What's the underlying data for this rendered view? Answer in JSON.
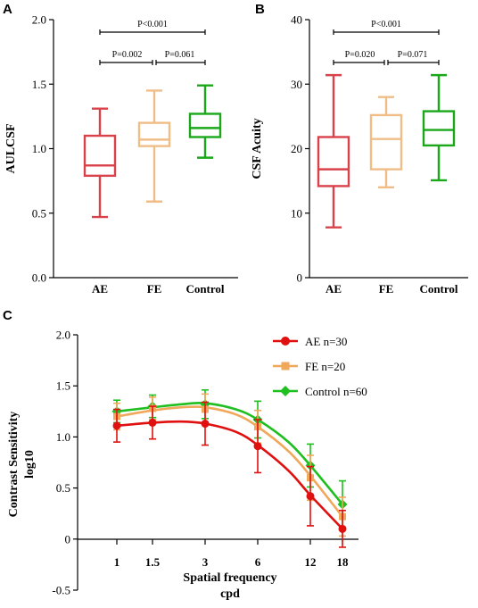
{
  "panel_labels": {
    "a": "A",
    "b": "B",
    "c": "C"
  },
  "chart_data": [
    {
      "id": "A",
      "type": "box",
      "ylabel": "AULCSF",
      "categories": [
        "AE",
        "FE",
        "Control"
      ],
      "ylim": [
        0.0,
        2.0
      ],
      "yticks": [
        "0.0",
        "0.5",
        "1.0",
        "1.5",
        "2.0"
      ],
      "boxes": [
        {
          "name": "AE",
          "min": 0.47,
          "q1": 0.79,
          "median": 0.87,
          "q3": 1.1,
          "max": 1.31,
          "color": "#d9424a"
        },
        {
          "name": "FE",
          "min": 0.59,
          "q1": 1.02,
          "median": 1.07,
          "q3": 1.2,
          "max": 1.45,
          "color": "#f0bd86"
        },
        {
          "name": "Control",
          "min": 0.93,
          "q1": 1.09,
          "median": 1.16,
          "q3": 1.27,
          "max": 1.49,
          "color": "#1aa81a"
        }
      ],
      "comparisons": [
        {
          "from": "AE",
          "to": "FE",
          "label": "P=0.002"
        },
        {
          "from": "FE",
          "to": "Control",
          "label": "P=0.061"
        },
        {
          "from": "AE",
          "to": "Control",
          "label": "P<0.001"
        }
      ]
    },
    {
      "id": "B",
      "type": "box",
      "ylabel": "CSF Acuity",
      "categories": [
        "AE",
        "FE",
        "Control"
      ],
      "ylim": [
        0,
        40
      ],
      "yticks": [
        "0",
        "10",
        "20",
        "30",
        "40"
      ],
      "boxes": [
        {
          "name": "AE",
          "min": 7.8,
          "q1": 14.2,
          "median": 16.8,
          "q3": 21.8,
          "max": 31.4,
          "color": "#d9424a"
        },
        {
          "name": "FE",
          "min": 14.0,
          "q1": 16.8,
          "median": 21.5,
          "q3": 25.2,
          "max": 28.0,
          "color": "#f0bd86"
        },
        {
          "name": "Control",
          "min": 15.1,
          "q1": 20.5,
          "median": 22.9,
          "q3": 25.8,
          "max": 31.4,
          "color": "#1aa81a"
        }
      ],
      "comparisons": [
        {
          "from": "AE",
          "to": "FE",
          "label": "P=0.020"
        },
        {
          "from": "FE",
          "to": "Control",
          "label": "P=0.071"
        },
        {
          "from": "AE",
          "to": "Control",
          "label": "P<0.001"
        }
      ]
    },
    {
      "id": "C",
      "type": "line",
      "ylabel": "Contrast  Sensitivity",
      "ylabel2": "log10",
      "xlabel": "Spatial frequency",
      "xlabel2": "cpd",
      "x": [
        1,
        1.5,
        3,
        6,
        12,
        18
      ],
      "xtick_labels": [
        "1",
        "1.5",
        "3",
        "6",
        "12",
        "18"
      ],
      "ylim": [
        -0.5,
        2.0
      ],
      "yticks": [
        "-0.5",
        "0",
        "0.5",
        "1.0",
        "1.5",
        "2.0"
      ],
      "series": [
        {
          "name": "AE n=30",
          "color": "#e01010",
          "marker": "circle",
          "values": [
            1.11,
            1.14,
            1.13,
            0.91,
            0.42,
            0.1
          ],
          "errors": [
            0.16,
            0.16,
            0.21,
            0.26,
            0.29,
            0.18
          ],
          "curve": [
            [
              1,
              1.11
            ],
            [
              1.5,
              1.14
            ],
            [
              2.2,
              1.15
            ],
            [
              3,
              1.13
            ],
            [
              4.5,
              1.05
            ],
            [
              6,
              0.92
            ],
            [
              9,
              0.67
            ],
            [
              12,
              0.43
            ],
            [
              18,
              0.1
            ]
          ]
        },
        {
          "name": "FE n=20",
          "color": "#f0a85a",
          "marker": "square",
          "values": [
            1.2,
            1.28,
            1.27,
            1.1,
            0.6,
            0.22
          ],
          "errors": [
            0.13,
            0.11,
            0.15,
            0.16,
            0.22,
            0.19
          ],
          "curve": [
            [
              1,
              1.2
            ],
            [
              1.5,
              1.26
            ],
            [
              2.2,
              1.29
            ],
            [
              3,
              1.29
            ],
            [
              4.5,
              1.22
            ],
            [
              6,
              1.1
            ],
            [
              9,
              0.86
            ],
            [
              12,
              0.62
            ],
            [
              18,
              0.22
            ]
          ]
        },
        {
          "name": "Control n=60",
          "color": "#1fbf1f",
          "marker": "diamond",
          "values": [
            1.25,
            1.3,
            1.32,
            1.17,
            0.72,
            0.34
          ],
          "errors": [
            0.11,
            0.11,
            0.14,
            0.18,
            0.21,
            0.23
          ],
          "curve": [
            [
              1,
              1.25
            ],
            [
              1.5,
              1.29
            ],
            [
              2.2,
              1.32
            ],
            [
              3,
              1.33
            ],
            [
              4.5,
              1.27
            ],
            [
              6,
              1.17
            ],
            [
              9,
              0.95
            ],
            [
              12,
              0.72
            ],
            [
              18,
              0.34
            ]
          ]
        }
      ]
    }
  ]
}
